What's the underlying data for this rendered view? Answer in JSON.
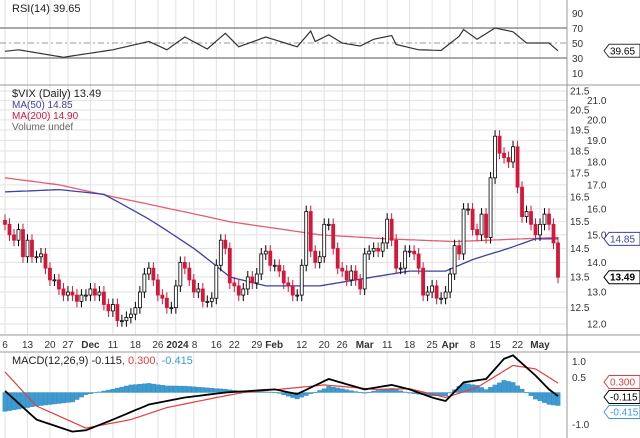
{
  "colors": {
    "up": "#000000",
    "down": "#d4173a",
    "ma50": "#4040a0",
    "ma200": "#e06070",
    "macd": "#000000",
    "signal": "#e04040",
    "histogram": "#3d9bd1",
    "grid": "#e2e2e2",
    "rsi": "#333333"
  },
  "chart_data": [
    {
      "type": "line",
      "panel": "rsi",
      "legend": "RSI(14) 39.65",
      "value_label": "39.65",
      "ylim": [
        0,
        100
      ],
      "yticks": [
        "90",
        "70",
        "50",
        "30",
        "10"
      ],
      "ytick_values": [
        90,
        70,
        50,
        30,
        10
      ],
      "reference_lines": [
        70,
        50,
        30
      ],
      "points": [
        [
          0,
          39
        ],
        [
          3,
          41
        ],
        [
          13,
          31
        ],
        [
          24,
          41
        ],
        [
          32,
          52
        ],
        [
          36,
          41
        ],
        [
          40,
          58
        ],
        [
          45,
          42
        ],
        [
          49,
          63
        ],
        [
          52,
          45
        ],
        [
          58,
          58
        ],
        [
          65,
          45
        ],
        [
          68,
          66
        ],
        [
          69,
          52
        ],
        [
          72,
          61
        ],
        [
          75,
          50
        ],
        [
          79,
          46
        ],
        [
          82,
          55
        ],
        [
          86,
          60
        ],
        [
          87,
          48
        ],
        [
          92,
          41
        ],
        [
          97,
          40
        ],
        [
          101,
          59
        ],
        [
          102,
          68
        ],
        [
          105,
          55
        ],
        [
          109,
          70
        ],
        [
          113,
          65
        ],
        [
          116,
          50
        ],
        [
          121,
          50
        ],
        [
          123,
          39.65
        ]
      ]
    },
    {
      "type": "candlestick",
      "panel": "price",
      "title": "$VIX (Daily) 13.49",
      "legend": [
        {
          "name": "MA(50) 14.85",
          "color": "#4040a0"
        },
        {
          "name": "MA(200) 14.90",
          "color": "#e06070"
        },
        {
          "name": "Volume undef",
          "color": "#666666"
        }
      ],
      "scale": "log",
      "ylim": [
        12.0,
        21.5
      ],
      "yticks": [
        "21.5",
        "21.0",
        "20.5",
        "20.0",
        "19.5",
        "19.0",
        "18.5",
        "18.0",
        "17.5",
        "17.0",
        "16.5",
        "16.0",
        "15.5",
        "15.0",
        "14.5",
        "14.0",
        "13.5",
        "13.0",
        "12.5",
        "12.0"
      ],
      "ma50_label": "14.85",
      "close_label": "13.49",
      "closes": [
        15.4,
        15.0,
        14.8,
        15.2,
        14.2,
        14.8,
        14.2,
        14.2,
        14.3,
        13.8,
        13.4,
        13.4,
        13.1,
        12.9,
        13.0,
        12.9,
        12.7,
        12.9,
        12.9,
        13.1,
        12.9,
        13.0,
        12.6,
        12.4,
        12.6,
        12.1,
        12.1,
        12.2,
        12.3,
        12.5,
        13.0,
        13.6,
        13.8,
        13.4,
        12.9,
        12.8,
        12.5,
        12.5,
        13.2,
        14.0,
        13.8,
        13.4,
        13.0,
        13.1,
        12.7,
        12.7,
        12.8,
        13.9,
        14.8,
        14.5,
        13.3,
        13.2,
        12.9,
        13.1,
        13.5,
        13.3,
        13.6,
        14.3,
        14.4,
        13.9,
        13.9,
        13.7,
        13.3,
        13.2,
        12.9,
        12.9,
        13.9,
        15.9,
        14.4,
        14.0,
        14.2,
        15.4,
        15.4,
        14.5,
        13.8,
        13.7,
        13.4,
        13.7,
        13.4,
        13.1,
        14.3,
        14.4,
        14.5,
        14.4,
        14.7,
        15.6,
        14.8,
        13.8,
        13.8,
        14.4,
        14.4,
        14.3,
        13.8,
        12.9,
        13.0,
        13.2,
        12.8,
        12.8,
        13.0,
        13.6,
        14.6,
        14.3,
        16.0,
        16.0,
        15.2,
        15.0,
        15.8,
        14.9,
        17.3,
        19.2,
        18.4,
        18.2,
        18.0,
        18.7,
        16.9,
        15.7,
        15.9,
        15.4,
        15.0,
        15.4,
        15.8,
        15.4,
        14.7,
        13.49
      ],
      "ma50": [
        [
          0,
          16.7
        ],
        [
          12,
          16.8
        ],
        [
          22,
          16.6
        ],
        [
          32,
          15.6
        ],
        [
          42,
          14.5
        ],
        [
          50,
          13.5
        ],
        [
          58,
          13.2
        ],
        [
          70,
          13.2
        ],
        [
          82,
          13.5
        ],
        [
          90,
          13.7
        ],
        [
          98,
          13.7
        ],
        [
          104,
          14.1
        ],
        [
          112,
          14.5
        ],
        [
          118,
          14.85
        ],
        [
          123,
          14.85
        ]
      ],
      "ma200": [
        [
          0,
          17.3
        ],
        [
          12,
          17.0
        ],
        [
          24,
          16.5
        ],
        [
          37,
          16.0
        ],
        [
          50,
          15.5
        ],
        [
          70,
          15.0
        ],
        [
          85,
          14.85
        ],
        [
          100,
          14.75
        ],
        [
          115,
          14.85
        ],
        [
          123,
          14.9
        ]
      ]
    },
    {
      "type": "line",
      "panel": "macd",
      "legend": {
        "prefix": "MACD(12,26,9) -0.115",
        "signal": ", 0.300",
        "hist": ", -0.415"
      },
      "labels": {
        "macd": "-0.115",
        "signal": "0.300",
        "hist": "-0.415"
      },
      "ylim": [
        -1.4,
        1.4
      ],
      "yticks": [
        "1.0",
        "0.5",
        "-1.0"
      ],
      "ytick_values": [
        1.0,
        0.5,
        -1.0
      ],
      "macd": [
        [
          0,
          0.05
        ],
        [
          7,
          -0.86
        ],
        [
          15,
          -1.24
        ],
        [
          18,
          -1.2
        ],
        [
          24,
          -0.86
        ],
        [
          32,
          -0.38
        ],
        [
          40,
          -0.16
        ],
        [
          49,
          0
        ],
        [
          60,
          0.1
        ],
        [
          65,
          -0.05
        ],
        [
          72,
          0.43
        ],
        [
          80,
          0.1
        ],
        [
          86,
          0.24
        ],
        [
          90,
          0.1
        ],
        [
          95,
          -0.16
        ],
        [
          98,
          -0.27
        ],
        [
          102,
          0.32
        ],
        [
          107,
          0.43
        ],
        [
          111,
          1.07
        ],
        [
          113,
          1.18
        ],
        [
          118,
          0.54
        ],
        [
          121,
          0.1
        ],
        [
          123,
          -0.115
        ]
      ],
      "signal": [
        [
          0,
          0.65
        ],
        [
          7,
          -0.43
        ],
        [
          18,
          -1.13
        ],
        [
          28,
          -0.86
        ],
        [
          36,
          -0.48
        ],
        [
          47,
          -0.16
        ],
        [
          53,
          0
        ],
        [
          61,
          0.1
        ],
        [
          71,
          0.24
        ],
        [
          82,
          0.1
        ],
        [
          90,
          0.12
        ],
        [
          98,
          -0.16
        ],
        [
          105,
          0.16
        ],
        [
          113,
          0.86
        ],
        [
          118,
          0.75
        ],
        [
          123,
          0.3
        ]
      ]
    }
  ],
  "x_ticks": [
    {
      "label": "6",
      "day": 0
    },
    {
      "label": "13",
      "day": 5
    },
    {
      "label": "20",
      "day": 10
    },
    {
      "label": "27",
      "day": 14
    },
    {
      "label": "Dec",
      "day": 19,
      "bold": true
    },
    {
      "label": "11",
      "day": 24
    },
    {
      "label": "18",
      "day": 29
    },
    {
      "label": "26",
      "day": 34
    },
    {
      "label": "2024",
      "day": 38,
      "bold": true
    },
    {
      "label": "8",
      "day": 42
    },
    {
      "label": "16",
      "day": 47
    },
    {
      "label": "22",
      "day": 51
    },
    {
      "label": "29",
      "day": 56
    },
    {
      "label": "Feb",
      "day": 59,
      "bold": true
    },
    {
      "label": "12",
      "day": 66
    },
    {
      "label": "20",
      "day": 71
    },
    {
      "label": "26",
      "day": 75
    },
    {
      "label": "Mar",
      "day": 80,
      "bold": true
    },
    {
      "label": "11",
      "day": 85
    },
    {
      "label": "18",
      "day": 90
    },
    {
      "label": "25",
      "day": 95
    },
    {
      "label": "Apr",
      "day": 99,
      "bold": true
    },
    {
      "label": "8",
      "day": 104
    },
    {
      "label": "15",
      "day": 109
    },
    {
      "label": "22",
      "day": 114
    },
    {
      "label": "May",
      "day": 119,
      "bold": true
    }
  ]
}
